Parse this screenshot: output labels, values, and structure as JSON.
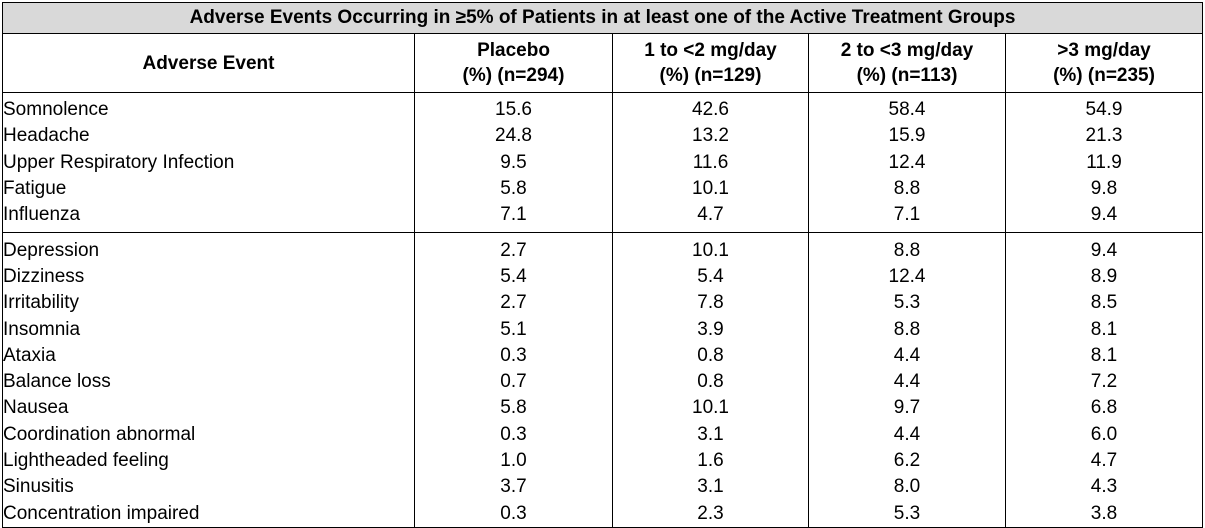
{
  "table": {
    "title": "Adverse Events Occurring in ≥5% of Patients in at least one of the Active Treatment Groups",
    "headers": [
      {
        "line1": "Adverse Event",
        "line2": ""
      },
      {
        "line1": "Placebo",
        "line2": "(%) (n=294)"
      },
      {
        "line1": "1 to <2 mg/day",
        "line2": "(%) (n=129)"
      },
      {
        "line1": "2 to <3 mg/day",
        "line2": "(%) (n=113)"
      },
      {
        "line1": ">3 mg/day",
        "line2": "(%) (n=235)"
      }
    ],
    "rows": [
      [
        "Somnolence",
        "15.6",
        "42.6",
        "58.4",
        "54.9"
      ],
      [
        "Headache",
        "24.8",
        "13.2",
        "15.9",
        "21.3"
      ],
      [
        "Upper Respiratory Infection",
        "9.5",
        "11.6",
        "12.4",
        "11.9"
      ],
      [
        "Fatigue",
        "5.8",
        "10.1",
        "8.8",
        "9.8"
      ],
      [
        "Influenza",
        "7.1",
        "4.7",
        "7.1",
        "9.4"
      ],
      [
        "Depression",
        "2.7",
        "10.1",
        "8.8",
        "9.4"
      ],
      [
        "Dizziness",
        "5.4",
        "5.4",
        "12.4",
        "8.9"
      ],
      [
        "Irritability",
        "2.7",
        "7.8",
        "5.3",
        "8.5"
      ],
      [
        "Insomnia",
        "5.1",
        "3.9",
        "8.8",
        "8.1"
      ],
      [
        "Ataxia",
        "0.3",
        "0.8",
        "4.4",
        "8.1"
      ],
      [
        "Balance loss",
        "0.7",
        "0.8",
        "4.4",
        "7.2"
      ],
      [
        "Nausea",
        "5.8",
        "10.1",
        "9.7",
        "6.8"
      ],
      [
        "Coordination abnormal",
        "0.3",
        "3.1",
        "4.4",
        "6.0"
      ],
      [
        "Lightheaded feeling",
        "1.0",
        "1.6",
        "6.2",
        "4.7"
      ],
      [
        "Sinusitis",
        "3.7",
        "3.1",
        "8.0",
        "4.3"
      ],
      [
        "Concentration impaired",
        "0.3",
        "2.3",
        "5.3",
        "3.8"
      ]
    ]
  }
}
